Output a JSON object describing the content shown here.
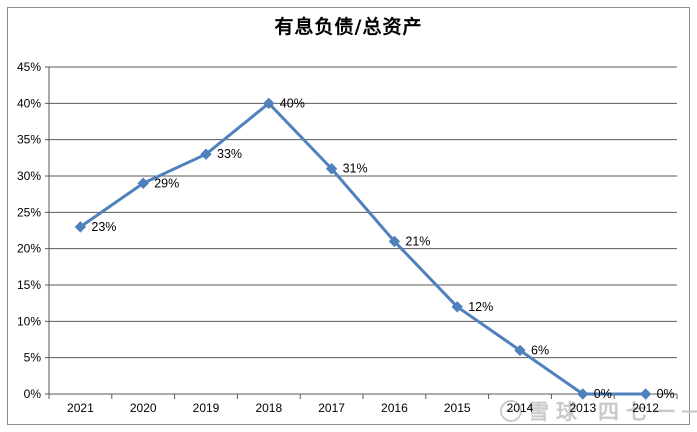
{
  "chart_data": {
    "type": "line",
    "title": "有息负债/总资产",
    "categories": [
      "2021",
      "2020",
      "2019",
      "2018",
      "2017",
      "2016",
      "2015",
      "2014",
      "2013",
      "2012"
    ],
    "values": [
      23,
      29,
      33,
      40,
      31,
      21,
      12,
      6,
      0,
      0
    ],
    "point_labels": [
      "23%",
      "29%",
      "33%",
      "40%",
      "31%",
      "21%",
      "12%",
      "6%",
      "0%",
      "0%"
    ],
    "y_ticks": [
      "0%",
      "5%",
      "10%",
      "15%",
      "20%",
      "25%",
      "30%",
      "35%",
      "40%",
      "45%"
    ],
    "ylim": [
      0,
      45
    ],
    "xlabel": "",
    "ylabel": "",
    "grid": true,
    "legend": "none",
    "line_color": "#4F81BD",
    "grid_color": "#595959",
    "marker": "diamond"
  },
  "watermark": {
    "brand": "雪球",
    "user": "四七一",
    "dash": "—"
  }
}
